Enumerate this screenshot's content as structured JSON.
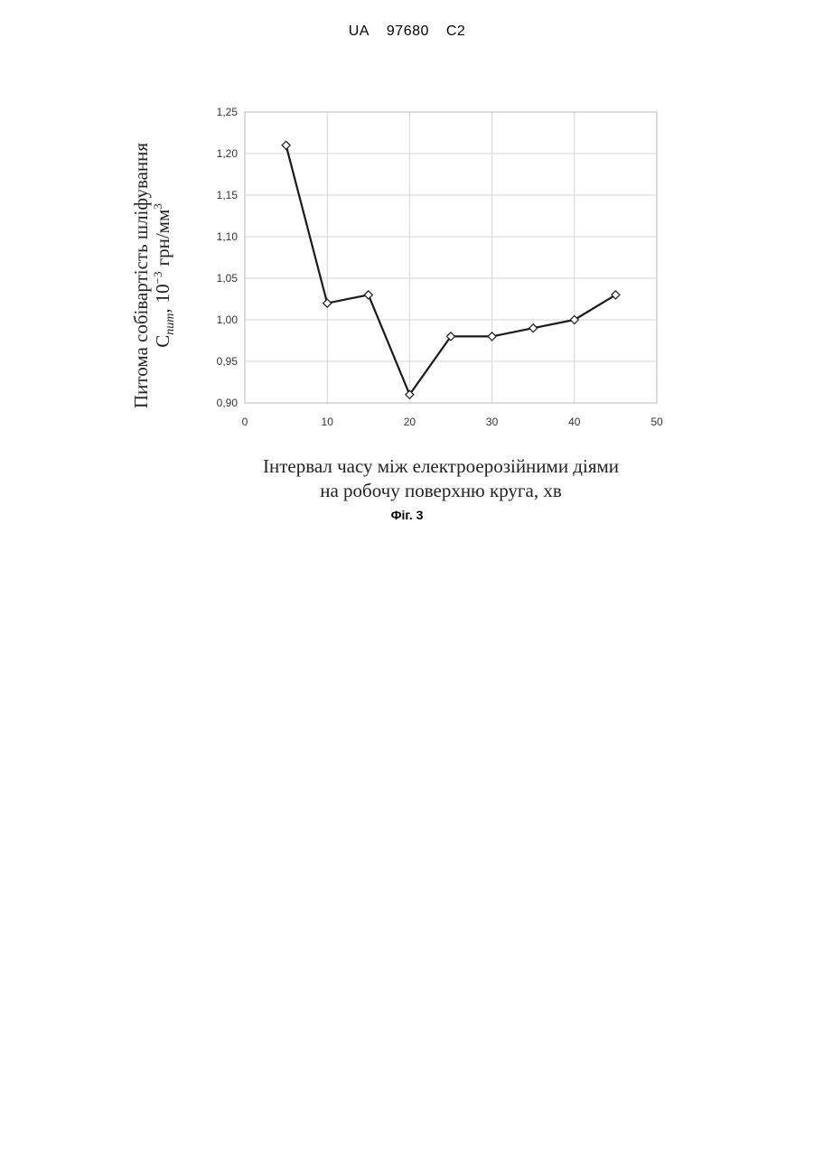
{
  "header": {
    "country": "UA",
    "number": "97680",
    "kind": "C2"
  },
  "figure_caption": "Фіг. 3",
  "chart_data": {
    "type": "line",
    "title": "",
    "xlabel_lines": [
      "Інтервал часу між електроерозійними діями",
      "на робочу поверхню круга, хв"
    ],
    "ylabel_line1": "Питома собівартість шліфування",
    "ylabel_line2": {
      "symbol": "C",
      "subscript": "пит",
      "comma": ",",
      "base": "10",
      "exponent": "−3",
      "unit": "грн/мм",
      "unit_exponent": "3"
    },
    "x": [
      5,
      10,
      15,
      20,
      25,
      30,
      35,
      40,
      45
    ],
    "series": [
      {
        "values": [
          1.21,
          1.02,
          1.03,
          0.91,
          0.98,
          0.98,
          0.99,
          1.0,
          1.03
        ]
      }
    ],
    "xlim": [
      0,
      50
    ],
    "ylim": [
      0.9,
      1.25
    ],
    "xticks": [
      "0",
      "10",
      "20",
      "30",
      "40",
      "50"
    ],
    "yticks": [
      "0,90",
      "0,95",
      "1,00",
      "1,05",
      "1,10",
      "1,15",
      "1,20",
      "1,25"
    ],
    "grid": true,
    "marker": "diamond",
    "line_color": "#1a1a1a",
    "grid_color": "#d4d4d4"
  }
}
